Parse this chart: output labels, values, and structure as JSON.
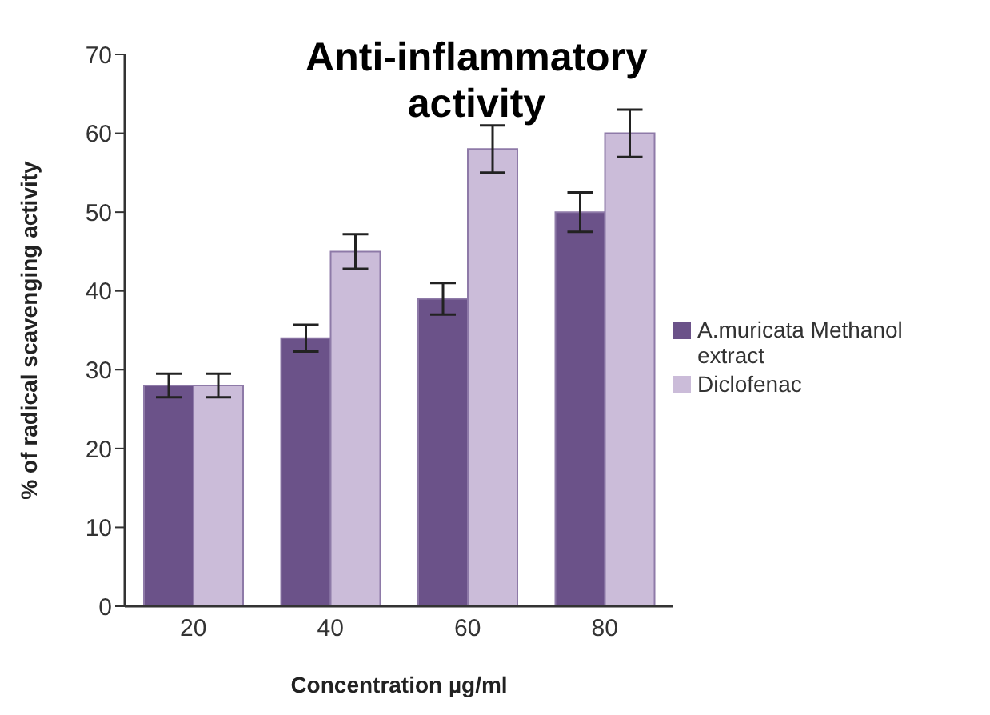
{
  "chart_data": {
    "type": "bar",
    "title": "Anti-inflammatory activity",
    "xlabel": "Concentration µg/ml",
    "ylabel": "% of radical scavenging activity",
    "categories": [
      "20",
      "40",
      "60",
      "80"
    ],
    "series": [
      {
        "name": "A.muricata Methanol extract",
        "color": "#6b5289",
        "values": [
          28,
          34,
          39,
          50
        ],
        "errors": [
          1.5,
          1.7,
          2,
          2.5
        ]
      },
      {
        "name": "Diclofenac",
        "color": "#cbbcd9",
        "values": [
          28,
          45,
          58,
          60
        ],
        "errors": [
          1.5,
          2.2,
          3,
          3
        ]
      }
    ],
    "ylim": [
      0,
      70
    ],
    "yticks": [
      0,
      10,
      20,
      30,
      40,
      50,
      60,
      70
    ],
    "grid": false,
    "legend": "right"
  }
}
